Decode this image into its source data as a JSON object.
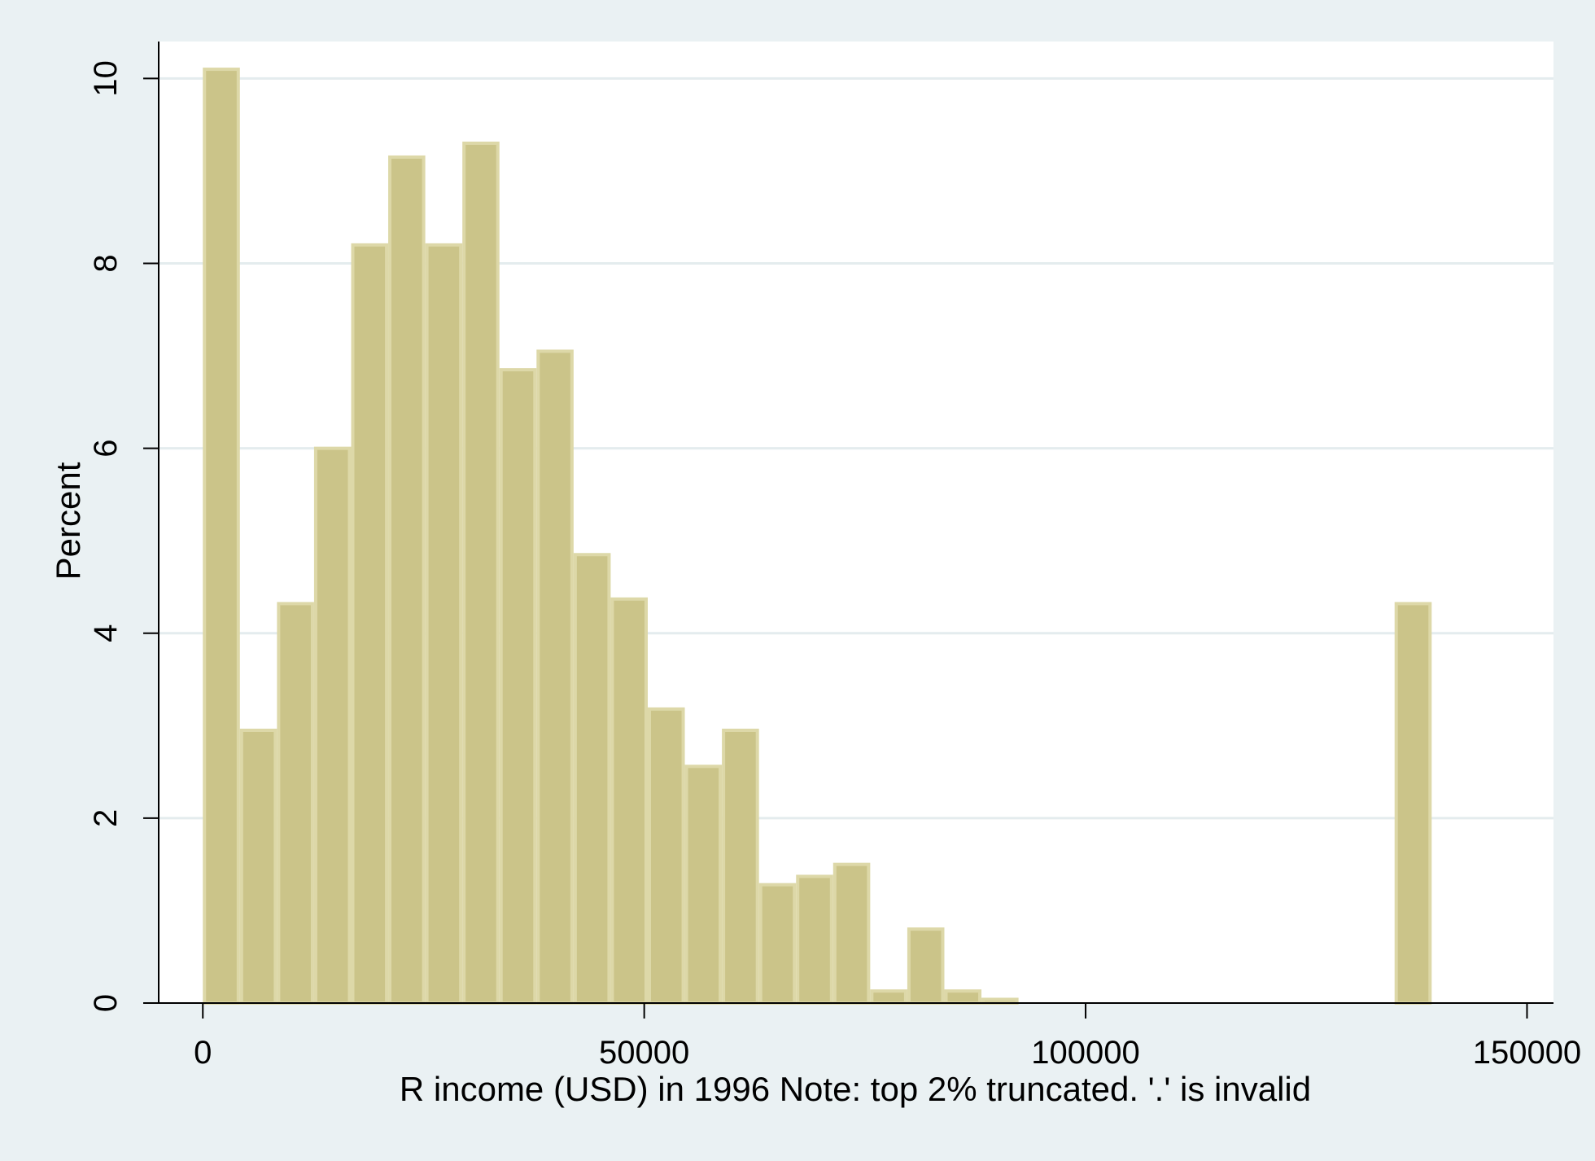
{
  "chart_data": {
    "type": "bar",
    "xlabel": "R income (USD) in 1996 Note: top 2% truncated. '.' is invalid",
    "ylabel": "Percent",
    "xlim": [
      -5000,
      153000
    ],
    "ylim": [
      0,
      10.4
    ],
    "x_ticks": [
      0,
      50000,
      100000,
      150000
    ],
    "y_ticks": [
      0,
      2,
      4,
      6,
      8,
      10
    ],
    "grid": "horizontal",
    "legend": "none",
    "bar_color": "#cbc489",
    "bar_edge_color": "#ddd8a8",
    "plot_background": "#ffffff",
    "page_background": "#eaf1f3",
    "grid_color": "#e4ecee",
    "bins": [
      {
        "x0": 0,
        "x1": 4200,
        "value": 10.1
      },
      {
        "x0": 4200,
        "x1": 8400,
        "value": 2.95
      },
      {
        "x0": 8400,
        "x1": 12600,
        "value": 4.32
      },
      {
        "x0": 12600,
        "x1": 16800,
        "value": 6.0
      },
      {
        "x0": 16800,
        "x1": 21000,
        "value": 8.2
      },
      {
        "x0": 21000,
        "x1": 25200,
        "value": 9.15
      },
      {
        "x0": 25200,
        "x1": 29400,
        "value": 8.2
      },
      {
        "x0": 29400,
        "x1": 33600,
        "value": 9.3
      },
      {
        "x0": 33600,
        "x1": 37800,
        "value": 6.85
      },
      {
        "x0": 37800,
        "x1": 42000,
        "value": 7.05
      },
      {
        "x0": 42000,
        "x1": 46200,
        "value": 4.85
      },
      {
        "x0": 46200,
        "x1": 50400,
        "value": 4.37
      },
      {
        "x0": 50400,
        "x1": 54600,
        "value": 3.18
      },
      {
        "x0": 54600,
        "x1": 58800,
        "value": 2.56
      },
      {
        "x0": 58800,
        "x1": 63000,
        "value": 2.95
      },
      {
        "x0": 63000,
        "x1": 67200,
        "value": 1.28
      },
      {
        "x0": 67200,
        "x1": 71400,
        "value": 1.37
      },
      {
        "x0": 71400,
        "x1": 75600,
        "value": 1.5
      },
      {
        "x0": 75600,
        "x1": 79800,
        "value": 0.13
      },
      {
        "x0": 79800,
        "x1": 84000,
        "value": 0.8
      },
      {
        "x0": 84000,
        "x1": 88200,
        "value": 0.13
      },
      {
        "x0": 88200,
        "x1": 92400,
        "value": 0.04
      },
      {
        "x0": 135000,
        "x1": 139200,
        "value": 4.32
      }
    ]
  }
}
